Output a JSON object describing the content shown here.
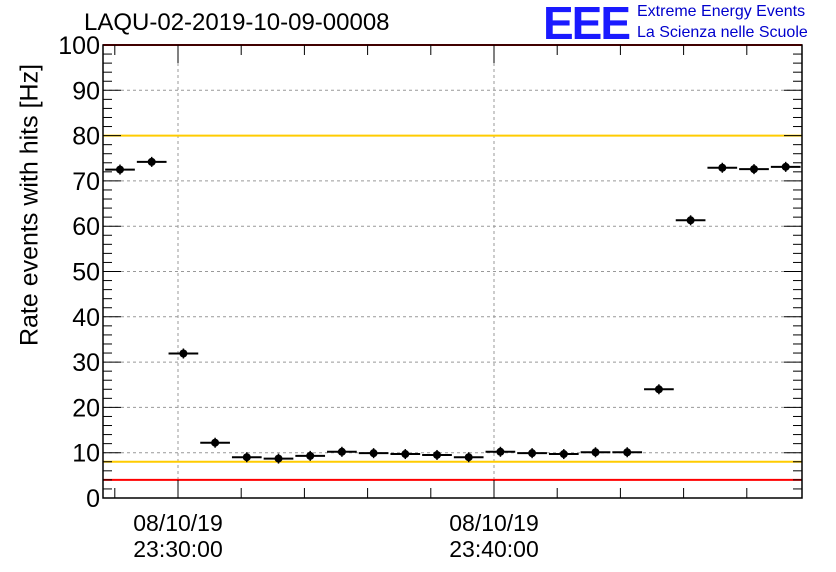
{
  "header": {
    "title": "LAQU-02-2019-10-09-00008",
    "logo_text": "EEE",
    "logo_line1": "Extreme Energy Events",
    "logo_line2": "La Scienza nelle Scuole"
  },
  "colors": {
    "logo": "#1a1aff",
    "threshold_red": "#ff0000",
    "threshold_yellow": "#ffcc00",
    "marker": "#000000"
  },
  "chart_data": {
    "type": "scatter",
    "title": "LAQU-02-2019-10-09-00008",
    "ylabel": "Rate events with hits [Hz]",
    "ylim": [
      0,
      100
    ],
    "yticks": [
      0,
      10,
      20,
      30,
      40,
      50,
      60,
      70,
      80,
      90,
      100
    ],
    "x_label_ticks": [
      {
        "date": "08/10/19",
        "time": "23:30:00"
      },
      {
        "date": "08/10/19",
        "time": "23:40:00"
      }
    ],
    "grid": true,
    "horizontal_lines": [
      {
        "y": 4,
        "color": "red"
      },
      {
        "y": 100,
        "color": "red"
      },
      {
        "y": 8,
        "color": "yellow"
      },
      {
        "y": 80,
        "color": "yellow"
      }
    ],
    "series": [
      {
        "values": [
          72.5,
          74.2,
          31.9,
          12.2,
          9.0,
          8.7,
          9.3,
          10.2,
          9.9,
          9.7,
          9.5,
          9.0,
          10.2,
          9.9,
          9.7,
          10.1,
          10.1,
          24.0,
          61.3,
          72.9,
          72.6,
          73.1
        ]
      }
    ]
  }
}
